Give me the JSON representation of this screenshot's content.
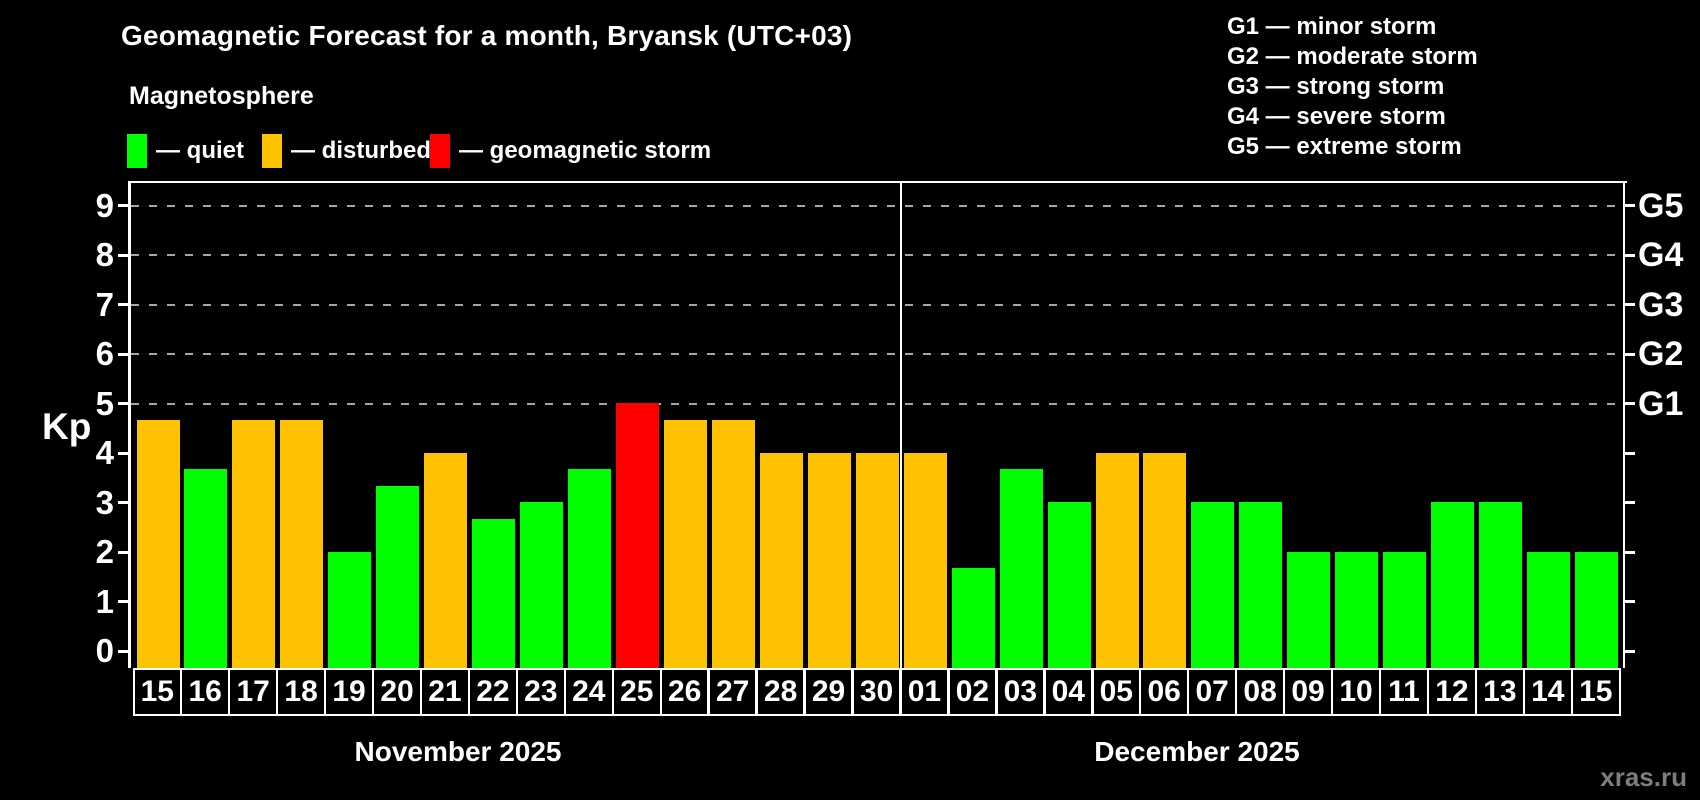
{
  "title": "Geomagnetic Forecast for a month, Bryansk (UTC+03)",
  "subtitle": "Magnetosphere",
  "kp_legend": [
    {
      "name": "quiet",
      "label": "— quiet",
      "color": "#00ff00"
    },
    {
      "name": "disturbed",
      "label": "— disturbed",
      "color": "#ffc200"
    },
    {
      "name": "storm",
      "label": "— geomagnetic storm",
      "color": "#ff0000"
    }
  ],
  "storm_scale_legend": [
    "G1 — minor storm",
    "G2 — moderate storm",
    "G3 — strong storm",
    "G4 — severe storm",
    "G5 — extreme storm"
  ],
  "watermark": "xras.ru",
  "chart_data": {
    "type": "bar",
    "title": "Geomagnetic Forecast for a month, Bryansk (UTC+03)",
    "ylabel": "Kp",
    "yticks": [
      0,
      1,
      2,
      3,
      4,
      5,
      6,
      7,
      8,
      9
    ],
    "ylim": [
      -0.35,
      9.45
    ],
    "grid": "dashed horizontal at Kp 5-9",
    "gridlines_kp": [
      5,
      6,
      7,
      8,
      9
    ],
    "right_axis": {
      "labels": [
        "G1",
        "G2",
        "G3",
        "G4",
        "G5"
      ],
      "kp_levels": [
        5,
        6,
        7,
        8,
        9
      ]
    },
    "status_colors": {
      "quiet": "#00ff00",
      "disturbed": "#ffc200",
      "storm": "#ff0000"
    },
    "months": [
      {
        "label": "November 2025",
        "days": [
          {
            "day": "15",
            "kp": 4.67,
            "status": "disturbed"
          },
          {
            "day": "16",
            "kp": 3.67,
            "status": "quiet"
          },
          {
            "day": "17",
            "kp": 4.67,
            "status": "disturbed"
          },
          {
            "day": "18",
            "kp": 4.67,
            "status": "disturbed"
          },
          {
            "day": "19",
            "kp": 2.0,
            "status": "quiet"
          },
          {
            "day": "20",
            "kp": 3.33,
            "status": "quiet"
          },
          {
            "day": "21",
            "kp": 4.0,
            "status": "disturbed"
          },
          {
            "day": "22",
            "kp": 2.67,
            "status": "quiet"
          },
          {
            "day": "23",
            "kp": 3.0,
            "status": "quiet"
          },
          {
            "day": "24",
            "kp": 3.67,
            "status": "quiet"
          },
          {
            "day": "25",
            "kp": 5.0,
            "status": "storm"
          },
          {
            "day": "26",
            "kp": 4.67,
            "status": "disturbed"
          },
          {
            "day": "27",
            "kp": 4.67,
            "status": "disturbed"
          },
          {
            "day": "28",
            "kp": 4.0,
            "status": "disturbed"
          },
          {
            "day": "29",
            "kp": 4.0,
            "status": "disturbed"
          },
          {
            "day": "30",
            "kp": 4.0,
            "status": "disturbed"
          }
        ]
      },
      {
        "label": "December 2025",
        "days": [
          {
            "day": "01",
            "kp": 4.0,
            "status": "disturbed"
          },
          {
            "day": "02",
            "kp": 1.67,
            "status": "quiet"
          },
          {
            "day": "03",
            "kp": 3.67,
            "status": "quiet"
          },
          {
            "day": "04",
            "kp": 3.0,
            "status": "quiet"
          },
          {
            "day": "05",
            "kp": 4.0,
            "status": "disturbed"
          },
          {
            "day": "06",
            "kp": 4.0,
            "status": "disturbed"
          },
          {
            "day": "07",
            "kp": 3.0,
            "status": "quiet"
          },
          {
            "day": "08",
            "kp": 3.0,
            "status": "quiet"
          },
          {
            "day": "09",
            "kp": 2.0,
            "status": "quiet"
          },
          {
            "day": "10",
            "kp": 2.0,
            "status": "quiet"
          },
          {
            "day": "11",
            "kp": 2.0,
            "status": "quiet"
          },
          {
            "day": "12",
            "kp": 3.0,
            "status": "quiet"
          },
          {
            "day": "13",
            "kp": 3.0,
            "status": "quiet"
          },
          {
            "day": "14",
            "kp": 2.0,
            "status": "quiet"
          },
          {
            "day": "15",
            "kp": 2.0,
            "status": "quiet"
          }
        ]
      }
    ]
  }
}
